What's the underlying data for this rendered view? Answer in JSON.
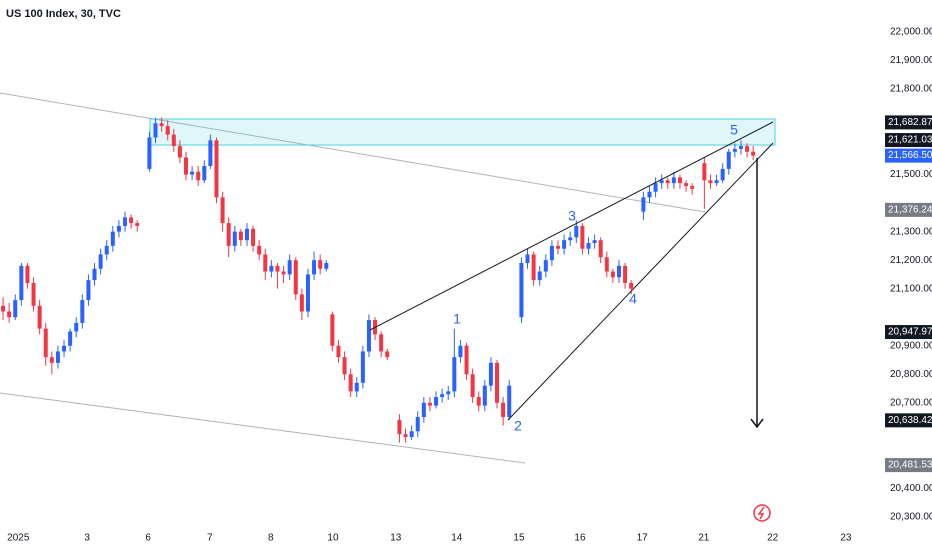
{
  "chart_data": {
    "type": "candlestick",
    "title": "US 100 Index, 30, TVC",
    "up_color": "#2962ff",
    "down_color": "#f23645",
    "xlim": [
      -0.5,
      143.8
    ],
    "ylim": [
      20254,
      22112
    ],
    "xticks": [
      {
        "value": 2.5,
        "label": "2025"
      },
      {
        "value": 13.8,
        "label": "3"
      },
      {
        "value": 23.8,
        "label": "6"
      },
      {
        "value": 33.9,
        "label": "7"
      },
      {
        "value": 43.9,
        "label": "8"
      },
      {
        "value": 54.1,
        "label": "10"
      },
      {
        "value": 64.4,
        "label": "13"
      },
      {
        "value": 74.4,
        "label": "14"
      },
      {
        "value": 84.6,
        "label": "15"
      },
      {
        "value": 94.6,
        "label": "16"
      },
      {
        "value": 104.8,
        "label": "17"
      },
      {
        "value": 114.9,
        "label": "21"
      },
      {
        "value": 126.2,
        "label": "22"
      },
      {
        "value": 138.2,
        "label": "23"
      }
    ],
    "yticks": [
      {
        "value": 22000,
        "label": "22,000.00"
      },
      {
        "value": 21900,
        "label": "21,900.00"
      },
      {
        "value": 21800,
        "label": "21,800.00"
      },
      {
        "value": 21500,
        "label": "21,500.00"
      },
      {
        "value": 21300,
        "label": "21,300.00"
      },
      {
        "value": 21200,
        "label": "21,200.00"
      },
      {
        "value": 21100,
        "label": "21,100.00"
      },
      {
        "value": 20900,
        "label": "20,900.00"
      },
      {
        "value": 20800,
        "label": "20,800.00"
      },
      {
        "value": 20700,
        "label": "20,700.00"
      },
      {
        "value": 20400,
        "label": "20,400.00"
      },
      {
        "value": 20300,
        "label": "20,300.00"
      }
    ],
    "price_markers": [
      {
        "value": 21682.87,
        "label": "21,682.87",
        "color": "#131722"
      },
      {
        "value": 21621.03,
        "label": "21,621.03",
        "color": "#131722"
      },
      {
        "value": 21566.5,
        "label": "21,566.50",
        "color": "#2962ff"
      },
      {
        "value": 21376.24,
        "label": "21,376.24",
        "color": "#787b86"
      },
      {
        "value": 20947.97,
        "label": "20,947.97",
        "color": "#131722"
      },
      {
        "value": 20638.42,
        "label": "20,638.42",
        "color": "#131722"
      },
      {
        "value": 20481.53,
        "label": "20,481.53",
        "color": "#787b86"
      }
    ],
    "wave_labels": [
      "1",
      "2",
      "3",
      "4",
      "5"
    ],
    "candles": [
      [
        0,
        21040,
        21070,
        20990,
        21020
      ],
      [
        1,
        21020,
        21050,
        20980,
        21000
      ],
      [
        2,
        21000,
        21080,
        20990,
        21060
      ],
      [
        3,
        21060,
        21190,
        21040,
        21180
      ],
      [
        4,
        21180,
        21190,
        21100,
        21120
      ],
      [
        5,
        21120,
        21140,
        21020,
        21040
      ],
      [
        6,
        21040,
        21060,
        20940,
        20960
      ],
      [
        7,
        20960,
        20980,
        20830,
        20860
      ],
      [
        8,
        20860,
        20880,
        20800,
        20840
      ],
      [
        9,
        20840,
        20900,
        20820,
        20880
      ],
      [
        10,
        20880,
        20920,
        20860,
        20900
      ],
      [
        11,
        20900,
        20960,
        20880,
        20950
      ],
      [
        12,
        20950,
        21000,
        20930,
        20980
      ],
      [
        13,
        20980,
        21080,
        20960,
        21060
      ],
      [
        14,
        21060,
        21150,
        21040,
        21130
      ],
      [
        15,
        21130,
        21190,
        21110,
        21170
      ],
      [
        16,
        21170,
        21240,
        21150,
        21220
      ],
      [
        17,
        21220,
        21270,
        21200,
        21250
      ],
      [
        18,
        21250,
        21320,
        21230,
        21300
      ],
      [
        19,
        21300,
        21340,
        21280,
        21320
      ],
      [
        20,
        21320,
        21370,
        21300,
        21350
      ],
      [
        21,
        21350,
        21360,
        21310,
        21330
      ],
      [
        22,
        21330,
        21340,
        21300,
        21320
      ],
      [
        24,
        21520,
        21650,
        21510,
        21630
      ],
      [
        25,
        21630,
        21700,
        21610,
        21680
      ],
      [
        26,
        21680,
        21700,
        21650,
        21670
      ],
      [
        27,
        21670,
        21690,
        21620,
        21640
      ],
      [
        28,
        21640,
        21660,
        21580,
        21600
      ],
      [
        29,
        21600,
        21620,
        21540,
        21560
      ],
      [
        30,
        21560,
        21580,
        21480,
        21500
      ],
      [
        31,
        21500,
        21530,
        21480,
        21510
      ],
      [
        32,
        21510,
        21530,
        21460,
        21480
      ],
      [
        33,
        21480,
        21550,
        21470,
        21530
      ],
      [
        34,
        21530,
        21640,
        21520,
        21620
      ],
      [
        35,
        21620,
        21630,
        21400,
        21420
      ],
      [
        36,
        21420,
        21440,
        21300,
        21330
      ],
      [
        37,
        21330,
        21350,
        21210,
        21250
      ],
      [
        38,
        21250,
        21320,
        21230,
        21300
      ],
      [
        39,
        21300,
        21310,
        21250,
        21270
      ],
      [
        40,
        21270,
        21330,
        21250,
        21310
      ],
      [
        41,
        21310,
        21320,
        21230,
        21250
      ],
      [
        42,
        21250,
        21270,
        21200,
        21220
      ],
      [
        43,
        21220,
        21240,
        21130,
        21160
      ],
      [
        44,
        21160,
        21200,
        21140,
        21180
      ],
      [
        45,
        21180,
        21190,
        21100,
        21160
      ],
      [
        46,
        21160,
        21180,
        21120,
        21150
      ],
      [
        47,
        21150,
        21220,
        21130,
        21200
      ],
      [
        48,
        21200,
        21210,
        21060,
        21080
      ],
      [
        49,
        21080,
        21100,
        20990,
        21020
      ],
      [
        50,
        21020,
        21170,
        21000,
        21150
      ],
      [
        51,
        21150,
        21230,
        21130,
        21200
      ],
      [
        52,
        21200,
        21220,
        21150,
        21170
      ],
      [
        53,
        21170,
        21200,
        21160,
        21190
      ],
      [
        54,
        21010,
        21020,
        20880,
        20900
      ],
      [
        55,
        20900,
        20920,
        20840,
        20860
      ],
      [
        56,
        20860,
        20880,
        20780,
        20800
      ],
      [
        57,
        20800,
        20820,
        20720,
        20740
      ],
      [
        58,
        20740,
        20790,
        20720,
        20770
      ],
      [
        59,
        20770,
        20900,
        20750,
        20880
      ],
      [
        60,
        20880,
        21010,
        20860,
        20990
      ],
      [
        61,
        20990,
        21000,
        20920,
        20940
      ],
      [
        62,
        20940,
        20950,
        20860,
        20880
      ],
      [
        63,
        20880,
        20890,
        20850,
        20860
      ],
      [
        65,
        20640,
        20660,
        20560,
        20590
      ],
      [
        66,
        20590,
        20610,
        20560,
        20580
      ],
      [
        67,
        20580,
        20620,
        20570,
        20600
      ],
      [
        68,
        20600,
        20670,
        20580,
        20650
      ],
      [
        69,
        20650,
        20720,
        20630,
        20700
      ],
      [
        70,
        20700,
        20720,
        20670,
        20690
      ],
      [
        71,
        20690,
        20740,
        20680,
        20720
      ],
      [
        72,
        20720,
        20750,
        20700,
        20730
      ],
      [
        73,
        20730,
        20760,
        20710,
        20740
      ],
      [
        74,
        20740,
        20960,
        20720,
        20860
      ],
      [
        75,
        20860,
        20920,
        20840,
        20900
      ],
      [
        76,
        20900,
        20910,
        20780,
        20800
      ],
      [
        77,
        20800,
        20820,
        20700,
        20720
      ],
      [
        78,
        20720,
        20740,
        20670,
        20690
      ],
      [
        79,
        20690,
        20780,
        20670,
        20760
      ],
      [
        80,
        20760,
        20860,
        20740,
        20840
      ],
      [
        81,
        20840,
        20850,
        20680,
        20700
      ],
      [
        82,
        20700,
        20720,
        20620,
        20650
      ],
      [
        83,
        20650,
        20780,
        20640,
        20760
      ],
      [
        85,
        21000,
        21210,
        20980,
        21190
      ],
      [
        86,
        21190,
        21240,
        21170,
        21220
      ],
      [
        87,
        21220,
        21230,
        21110,
        21130
      ],
      [
        88,
        21130,
        21180,
        21110,
        21160
      ],
      [
        89,
        21160,
        21220,
        21140,
        21200
      ],
      [
        90,
        21200,
        21270,
        21180,
        21250
      ],
      [
        91,
        21250,
        21270,
        21220,
        21240
      ],
      [
        92,
        21240,
        21290,
        21220,
        21270
      ],
      [
        93,
        21270,
        21300,
        21250,
        21280
      ],
      [
        94,
        21280,
        21340,
        21260,
        21320
      ],
      [
        95,
        21320,
        21330,
        21220,
        21240
      ],
      [
        96,
        21240,
        21280,
        21220,
        21260
      ],
      [
        97,
        21260,
        21290,
        21240,
        21270
      ],
      [
        98,
        21270,
        21280,
        21190,
        21210
      ],
      [
        99,
        21210,
        21230,
        21140,
        21160
      ],
      [
        100,
        21160,
        21170,
        21120,
        21140
      ],
      [
        101,
        21140,
        21200,
        21120,
        21180
      ],
      [
        102,
        21180,
        21190,
        21100,
        21120
      ],
      [
        103,
        21120,
        21130,
        21080,
        21100
      ],
      [
        105,
        21370,
        21440,
        21340,
        21420
      ],
      [
        106,
        21420,
        21460,
        21400,
        21440
      ],
      [
        107,
        21440,
        21490,
        21420,
        21470
      ],
      [
        108,
        21470,
        21500,
        21450,
        21480
      ],
      [
        109,
        21480,
        21490,
        21450,
        21470
      ],
      [
        110,
        21470,
        21510,
        21450,
        21490
      ],
      [
        111,
        21490,
        21500,
        21450,
        21470
      ],
      [
        112,
        21470,
        21480,
        21440,
        21460
      ],
      [
        113,
        21460,
        21470,
        21430,
        21450
      ],
      [
        115,
        21540,
        21560,
        21380,
        21480
      ],
      [
        116,
        21480,
        21500,
        21450,
        21470
      ],
      [
        117,
        21470,
        21500,
        21460,
        21480
      ],
      [
        118,
        21480,
        21540,
        21470,
        21520
      ],
      [
        119,
        21520,
        21590,
        21500,
        21580
      ],
      [
        120,
        21580,
        21610,
        21560,
        21590
      ],
      [
        121,
        21590,
        21620,
        21570,
        21600
      ],
      [
        122,
        21600,
        21610,
        21560,
        21580
      ],
      [
        123,
        21580,
        21600,
        21550,
        21566.5
      ]
    ]
  }
}
